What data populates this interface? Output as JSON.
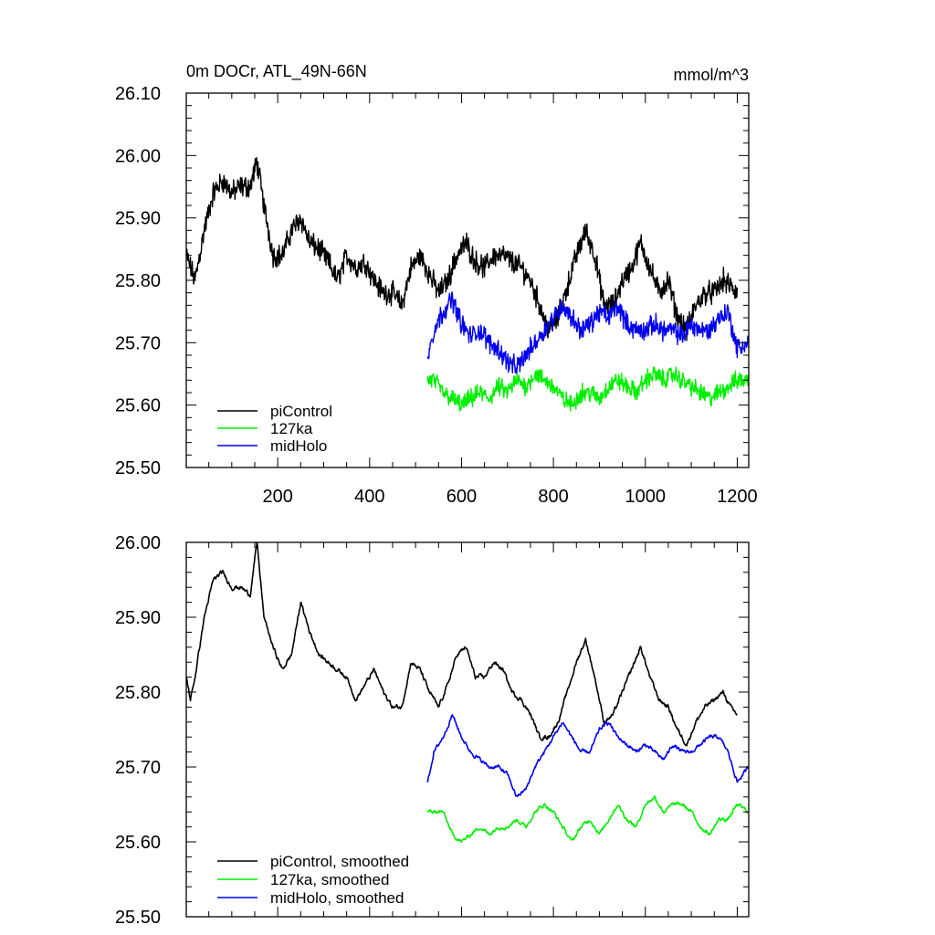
{
  "colors": {
    "piControl": "#000000",
    "127ka": "#00ee00",
    "midHolo": "#0000ee"
  },
  "chart_data": [
    {
      "type": "line",
      "title": "0m DOCr, ATL_49N-66N",
      "units": "mmol/m^3",
      "xlim": [
        1,
        1225
      ],
      "ylim": [
        25.5,
        26.1
      ],
      "x_ticks": [
        200,
        400,
        600,
        800,
        1000,
        1200
      ],
      "x_tick_labels": [
        "200",
        "400",
        "600",
        "800",
        "1000",
        "1200"
      ],
      "y_ticks": [
        25.5,
        25.6,
        25.7,
        25.8,
        25.9,
        26.0,
        26.1
      ],
      "y_tick_labels": [
        "25.50",
        "25.60",
        "25.70",
        "25.80",
        "25.90",
        "26.00",
        "26.10"
      ],
      "legend_position": "bottom-left",
      "series": [
        {
          "name": "piControl",
          "color": "#000000",
          "x_range": [
            1,
            1200
          ],
          "x": [
            1,
            20,
            40,
            60,
            80,
            100,
            120,
            140,
            155,
            170,
            190,
            210,
            230,
            250,
            270,
            290,
            310,
            330,
            350,
            370,
            390,
            410,
            430,
            450,
            470,
            490,
            510,
            530,
            550,
            570,
            590,
            610,
            630,
            650,
            670,
            690,
            710,
            730,
            750,
            770,
            790,
            810,
            830,
            850,
            870,
            890,
            910,
            930,
            950,
            970,
            990,
            1010,
            1030,
            1050,
            1070,
            1090,
            1110,
            1130,
            1150,
            1170,
            1185,
            1200
          ],
          "values": [
            25.84,
            25.8,
            25.88,
            25.94,
            25.96,
            25.94,
            25.95,
            25.95,
            25.99,
            25.92,
            25.84,
            25.84,
            25.88,
            25.9,
            25.86,
            25.85,
            25.83,
            25.8,
            25.84,
            25.82,
            25.83,
            25.8,
            25.78,
            25.78,
            25.76,
            25.82,
            25.84,
            25.81,
            25.78,
            25.8,
            25.84,
            25.86,
            25.83,
            25.82,
            25.84,
            25.84,
            25.83,
            25.82,
            25.8,
            25.76,
            25.72,
            25.74,
            25.79,
            25.84,
            25.88,
            25.84,
            25.76,
            25.76,
            25.8,
            25.82,
            25.86,
            25.82,
            25.78,
            25.8,
            25.74,
            25.72,
            25.76,
            25.78,
            25.78,
            25.8,
            25.79,
            25.78
          ],
          "noise": 0.022
        },
        {
          "name": "127ka",
          "color": "#00ee00",
          "x_range": [
            526,
            1225
          ],
          "x": [
            526,
            540,
            560,
            580,
            600,
            620,
            640,
            660,
            680,
            700,
            720,
            740,
            760,
            780,
            800,
            820,
            840,
            860,
            880,
            900,
            920,
            940,
            960,
            980,
            1000,
            1020,
            1040,
            1060,
            1080,
            1100,
            1120,
            1140,
            1160,
            1180,
            1200,
            1225
          ],
          "values": [
            25.64,
            25.64,
            25.62,
            25.61,
            25.6,
            25.61,
            25.62,
            25.61,
            25.63,
            25.62,
            25.64,
            25.63,
            25.65,
            25.64,
            25.63,
            25.61,
            25.6,
            25.62,
            25.62,
            25.61,
            25.63,
            25.64,
            25.63,
            25.62,
            25.64,
            25.65,
            25.64,
            25.65,
            25.64,
            25.63,
            25.62,
            25.61,
            25.62,
            25.63,
            25.64,
            25.64
          ],
          "noise": 0.018
        },
        {
          "name": "midHolo",
          "color": "#0000ee",
          "x_range": [
            526,
            1225
          ],
          "x": [
            526,
            540,
            560,
            580,
            600,
            620,
            640,
            660,
            680,
            700,
            720,
            740,
            760,
            780,
            800,
            820,
            840,
            860,
            880,
            900,
            920,
            940,
            960,
            980,
            1000,
            1020,
            1040,
            1060,
            1080,
            1100,
            1120,
            1140,
            1160,
            1180,
            1200,
            1225
          ],
          "values": [
            25.68,
            25.72,
            25.75,
            25.77,
            25.73,
            25.71,
            25.72,
            25.7,
            25.69,
            25.67,
            25.66,
            25.68,
            25.7,
            25.72,
            25.74,
            25.76,
            25.74,
            25.72,
            25.73,
            25.75,
            25.74,
            25.76,
            25.73,
            25.72,
            25.72,
            25.73,
            25.72,
            25.72,
            25.71,
            25.73,
            25.72,
            25.72,
            25.74,
            25.75,
            25.69,
            25.7
          ],
          "noise": 0.02
        }
      ]
    },
    {
      "type": "line",
      "xlim": [
        1,
        1225
      ],
      "ylim": [
        25.5,
        26.0
      ],
      "x_ticks": [
        200,
        400,
        600,
        800,
        1000,
        1200
      ],
      "y_ticks": [
        25.5,
        25.6,
        25.7,
        25.8,
        25.9,
        26.0
      ],
      "y_tick_labels": [
        "25.50",
        "25.60",
        "25.70",
        "25.80",
        "25.90",
        "26.00"
      ],
      "legend_position": "bottom-left",
      "series": [
        {
          "name": "piControl, smoothed",
          "color": "#000000",
          "x_range": [
            1,
            1200
          ],
          "x": [
            1,
            10,
            20,
            40,
            60,
            80,
            100,
            120,
            140,
            155,
            170,
            190,
            210,
            230,
            250,
            270,
            290,
            310,
            330,
            350,
            370,
            390,
            410,
            430,
            450,
            470,
            490,
            510,
            530,
            550,
            570,
            590,
            610,
            630,
            650,
            670,
            690,
            710,
            730,
            750,
            770,
            790,
            810,
            830,
            850,
            870,
            890,
            910,
            930,
            950,
            970,
            990,
            1010,
            1030,
            1050,
            1070,
            1090,
            1110,
            1130,
            1150,
            1170,
            1185,
            1200
          ],
          "values": [
            25.82,
            25.79,
            25.82,
            25.9,
            25.95,
            25.96,
            25.94,
            25.94,
            25.93,
            26.0,
            25.9,
            25.86,
            25.83,
            25.85,
            25.92,
            25.88,
            25.85,
            25.84,
            25.83,
            25.82,
            25.79,
            25.81,
            25.83,
            25.8,
            25.78,
            25.78,
            25.84,
            25.83,
            25.8,
            25.78,
            25.81,
            25.85,
            25.86,
            25.82,
            25.82,
            25.84,
            25.83,
            25.8,
            25.79,
            25.77,
            25.74,
            25.74,
            25.76,
            25.8,
            25.84,
            25.87,
            25.82,
            25.76,
            25.77,
            25.8,
            25.83,
            25.86,
            25.82,
            25.79,
            25.78,
            25.75,
            25.73,
            25.76,
            25.78,
            25.79,
            25.8,
            25.78,
            25.77
          ],
          "noise": 0.007
        },
        {
          "name": "127ka, smoothed",
          "color": "#00ee00",
          "x_range": [
            526,
            1225
          ],
          "x": [
            526,
            540,
            560,
            580,
            600,
            620,
            640,
            660,
            680,
            700,
            720,
            740,
            760,
            780,
            800,
            820,
            840,
            860,
            880,
            900,
            920,
            940,
            960,
            980,
            1000,
            1020,
            1040,
            1060,
            1080,
            1100,
            1120,
            1140,
            1160,
            1180,
            1200,
            1225
          ],
          "values": [
            25.64,
            25.64,
            25.64,
            25.61,
            25.6,
            25.61,
            25.62,
            25.61,
            25.62,
            25.62,
            25.63,
            25.62,
            25.64,
            25.65,
            25.64,
            25.62,
            25.6,
            25.62,
            25.63,
            25.61,
            25.63,
            25.65,
            25.63,
            25.62,
            25.65,
            25.66,
            25.64,
            25.65,
            25.65,
            25.64,
            25.62,
            25.61,
            25.63,
            25.63,
            25.65,
            25.64
          ],
          "noise": 0.006
        },
        {
          "name": "midHolo, smoothed",
          "color": "#0000ee",
          "x_range": [
            526,
            1225
          ],
          "x": [
            526,
            540,
            560,
            580,
            600,
            620,
            640,
            660,
            680,
            700,
            720,
            740,
            760,
            780,
            800,
            820,
            840,
            860,
            880,
            900,
            920,
            940,
            960,
            980,
            1000,
            1020,
            1040,
            1060,
            1080,
            1100,
            1120,
            1140,
            1160,
            1180,
            1200,
            1225
          ],
          "values": [
            25.68,
            25.72,
            25.74,
            25.77,
            25.74,
            25.72,
            25.71,
            25.7,
            25.7,
            25.69,
            25.66,
            25.67,
            25.7,
            25.72,
            25.74,
            25.76,
            25.74,
            25.72,
            25.72,
            25.75,
            25.76,
            25.74,
            25.73,
            25.72,
            25.73,
            25.72,
            25.71,
            25.73,
            25.72,
            25.72,
            25.73,
            25.74,
            25.74,
            25.72,
            25.68,
            25.7
          ],
          "noise": 0.006
        }
      ]
    }
  ]
}
